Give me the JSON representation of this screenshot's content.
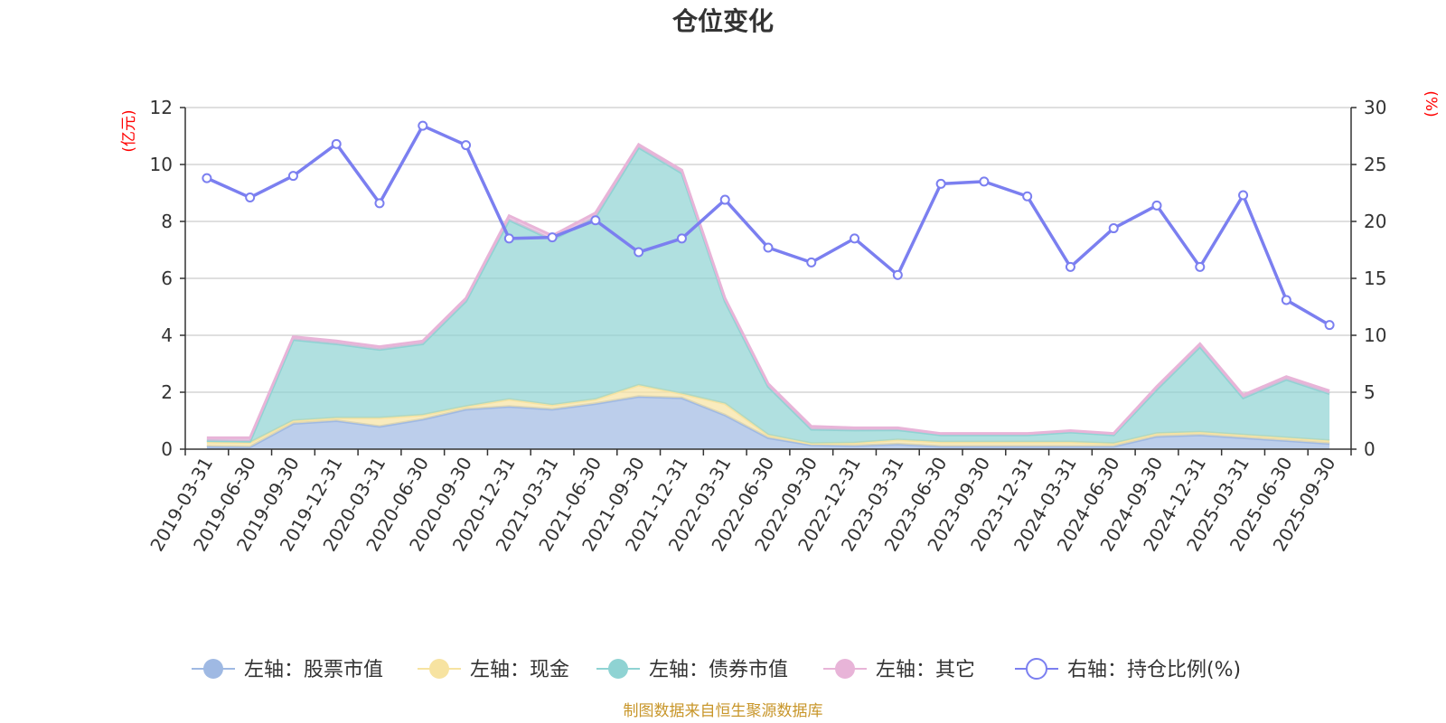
{
  "chart_data": {
    "type": "area",
    "title": "仓位变化",
    "left_axis_unit": "(亿元)",
    "right_axis_unit": "(%)",
    "ylim_left": [
      0,
      12
    ],
    "ylim_right": [
      0,
      30
    ],
    "yticks_left": [
      "0",
      "2",
      "4",
      "6",
      "8",
      "10",
      "12"
    ],
    "yticks_right": [
      "0",
      "5",
      "10",
      "15",
      "20",
      "25",
      "30"
    ],
    "categories": [
      "2019-03-31",
      "2019-06-30",
      "2019-09-30",
      "2019-12-31",
      "2020-03-31",
      "2020-06-30",
      "2020-09-30",
      "2020-12-31",
      "2021-03-31",
      "2021-06-30",
      "2021-09-30",
      "2021-12-31",
      "2022-03-31",
      "2022-06-30",
      "2022-09-30",
      "2022-12-31",
      "2023-03-31",
      "2023-06-30",
      "2023-09-30",
      "2023-12-31",
      "2024-03-31",
      "2024-06-30",
      "2024-09-30",
      "2024-12-31",
      "2025-03-31",
      "2025-06-30",
      "2025-09-30"
    ],
    "series": [
      {
        "name": "左轴：股票市值",
        "axis": "left",
        "color": "#9fb9e3",
        "values": [
          0.1,
          0.08,
          0.9,
          1.0,
          0.8,
          1.05,
          1.4,
          1.5,
          1.4,
          1.6,
          1.85,
          1.8,
          1.2,
          0.4,
          0.15,
          0.12,
          0.18,
          0.1,
          0.1,
          0.1,
          0.1,
          0.1,
          0.45,
          0.5,
          0.4,
          0.3,
          0.2
        ]
      },
      {
        "name": "左轴：现金",
        "axis": "left",
        "color": "#f7e3a1",
        "values": [
          0.15,
          0.15,
          0.1,
          0.1,
          0.3,
          0.15,
          0.1,
          0.25,
          0.15,
          0.15,
          0.4,
          0.15,
          0.4,
          0.1,
          0.05,
          0.1,
          0.15,
          0.15,
          0.15,
          0.15,
          0.15,
          0.1,
          0.1,
          0.1,
          0.1,
          0.1,
          0.1
        ]
      },
      {
        "name": "左轴：债券市值",
        "axis": "left",
        "color": "#8fd3d3",
        "values": [
          0.05,
          0.05,
          2.85,
          2.6,
          2.4,
          2.5,
          3.7,
          6.3,
          5.8,
          6.4,
          8.35,
          7.75,
          3.6,
          1.7,
          0.5,
          0.45,
          0.35,
          0.25,
          0.25,
          0.25,
          0.35,
          0.3,
          1.55,
          3.0,
          1.3,
          2.05,
          1.65
        ]
      },
      {
        "name": "左轴：其它",
        "axis": "left",
        "color": "#e8b4d8",
        "values": [
          0.1,
          0.12,
          0.1,
          0.1,
          0.1,
          0.1,
          0.1,
          0.15,
          0.15,
          0.15,
          0.1,
          0.1,
          0.1,
          0.1,
          0.1,
          0.08,
          0.07,
          0.05,
          0.05,
          0.05,
          0.05,
          0.05,
          0.1,
          0.1,
          0.1,
          0.1,
          0.1
        ]
      },
      {
        "name": "右轴：持仓比例(%)",
        "axis": "right",
        "color": "#7b7ff0",
        "values": [
          23.8,
          22.1,
          24.0,
          26.8,
          21.6,
          28.4,
          26.7,
          18.5,
          18.6,
          20.1,
          17.3,
          18.5,
          21.9,
          17.7,
          16.4,
          18.5,
          15.3,
          23.3,
          23.5,
          22.2,
          16.0,
          19.4,
          21.4,
          16.0,
          22.3,
          13.1,
          10.9
        ]
      }
    ],
    "legend_position": "bottom-center",
    "grid": true
  },
  "legend": [
    {
      "label": "左轴：股票市值",
      "color": "#9fb9e3",
      "style": "filled"
    },
    {
      "label": "左轴：现金",
      "color": "#f7e3a1",
      "style": "filled"
    },
    {
      "label": "左轴：债券市值",
      "color": "#8fd3d3",
      "style": "filled"
    },
    {
      "label": "左轴：其它",
      "color": "#e8b4d8",
      "style": "filled"
    },
    {
      "label": "右轴：持仓比例(%)",
      "color": "#7b7ff0",
      "style": "hollow"
    }
  ],
  "source_note": "制图数据来自恒生聚源数据库"
}
